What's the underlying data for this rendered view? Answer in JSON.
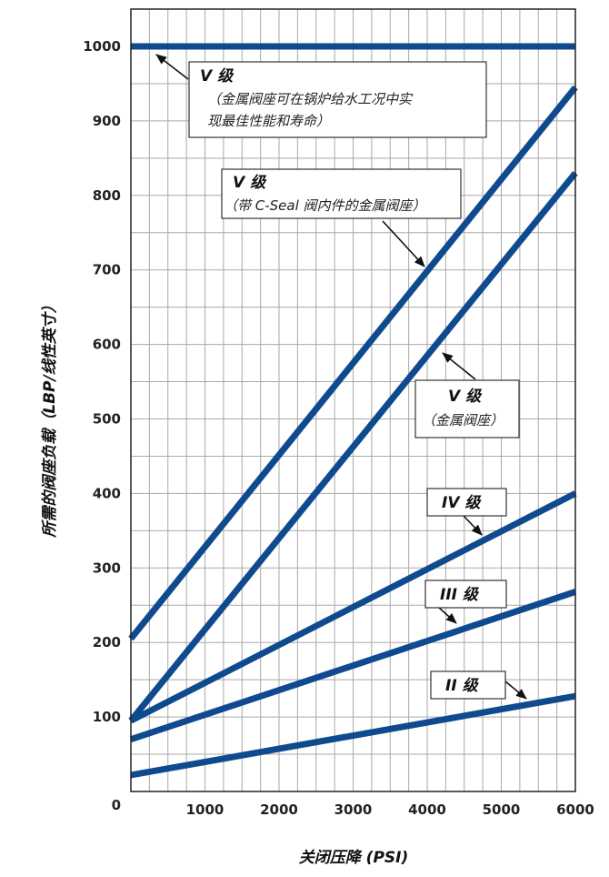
{
  "colors": {
    "series": "#0f4a8f",
    "grid": "#a9a9a9",
    "frame": "#222222",
    "annotation_border": "#333333"
  },
  "chart_data": {
    "type": "line",
    "xlabel": "关闭压降 (PSI)",
    "ylabel": "所需的阀座负载（LBP/线性英寸）",
    "xlim": [
      0,
      6000
    ],
    "ylim": [
      0,
      1050
    ],
    "grid": true,
    "x_ticks": [
      "1000",
      "2000",
      "3000",
      "4000",
      "5000",
      "6000"
    ],
    "y_ticks": [
      "0",
      "100",
      "200",
      "300",
      "400",
      "500",
      "600",
      "700",
      "800",
      "900",
      "1000"
    ],
    "series": [
      {
        "name": "V 级 (金属阀座可在锅炉给水工况中实现最佳性能和寿命)",
        "x": [
          0,
          6000
        ],
        "y": [
          1000,
          1000
        ]
      },
      {
        "name": "V 级 (带 C-Seal 阀内件的金属阀座)",
        "x": [
          0,
          6000
        ],
        "y": [
          205,
          945
        ]
      },
      {
        "name": "V 级 (金属阀座)",
        "x": [
          0,
          6000
        ],
        "y": [
          95,
          830
        ]
      },
      {
        "name": "IV 级",
        "x": [
          0,
          6000
        ],
        "y": [
          95,
          400
        ]
      },
      {
        "name": "III 级",
        "x": [
          0,
          6000
        ],
        "y": [
          70,
          268
        ]
      },
      {
        "name": "II 级",
        "x": [
          0,
          6000
        ],
        "y": [
          22,
          128
        ]
      }
    ],
    "annotations": [
      {
        "title": "V 级",
        "lines": [
          "（金属阀座可在锅炉给水工况中实",
          "现最佳性能和寿命）"
        ]
      },
      {
        "title": "V 级",
        "lines": [
          "（带 C-Seal 阀内件的金属阀座）"
        ]
      },
      {
        "title": "V 级",
        "lines": [
          "（金属阀座）"
        ]
      },
      {
        "title": "IV 级",
        "lines": []
      },
      {
        "title": "III 级",
        "lines": []
      },
      {
        "title": "II 级",
        "lines": []
      }
    ]
  }
}
